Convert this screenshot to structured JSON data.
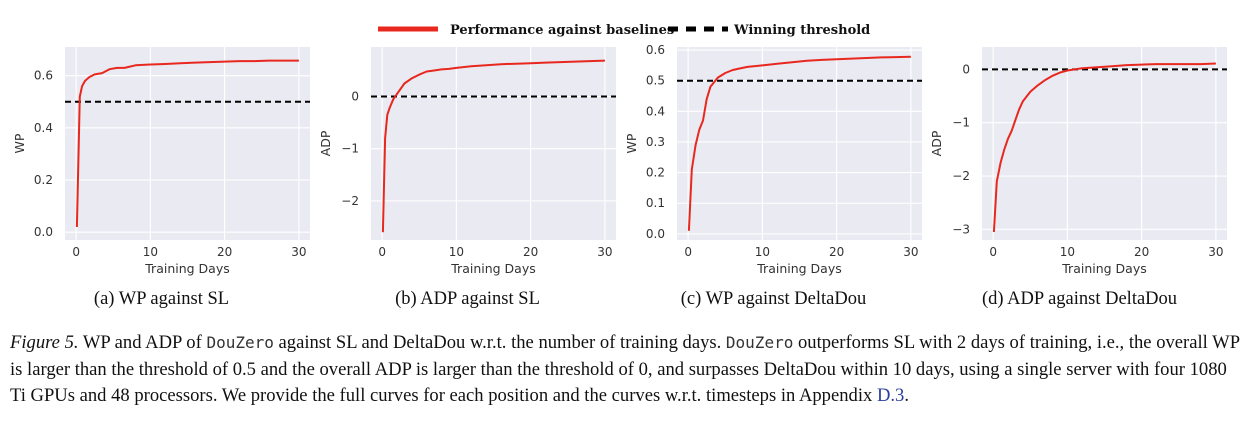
{
  "legend": {
    "performance_label": "Performance against baselines",
    "threshold_label": "Winning threshold",
    "performance_color": "#e8281e",
    "threshold_color": "#000000"
  },
  "colors": {
    "plot_background": "#eaeaf2",
    "grid": "#ffffff",
    "axis_text": "#333333"
  },
  "chart_data": [
    {
      "type": "line",
      "caption": "(a) WP against SL",
      "xlabel": "Training Days",
      "ylabel": "WP",
      "xlim": [
        -1.5,
        31.5
      ],
      "ylim": [
        -0.03,
        0.71
      ],
      "xticks": [
        0,
        10,
        20,
        30
      ],
      "yticks": [
        0.0,
        0.2,
        0.4,
        0.6
      ],
      "ytick_labels": [
        "0.0",
        "0.2",
        "0.4",
        "0.6"
      ],
      "threshold": 0.5,
      "series": [
        {
          "x": [
            0.1,
            0.5,
            0.8,
            1.2,
            1.8,
            2.5,
            3.5,
            4.5,
            5.5,
            6.5,
            8,
            10,
            12,
            14,
            16,
            18,
            20,
            22,
            24,
            26,
            28,
            30
          ],
          "y": [
            0.02,
            0.52,
            0.56,
            0.58,
            0.595,
            0.605,
            0.61,
            0.625,
            0.63,
            0.63,
            0.64,
            0.643,
            0.645,
            0.648,
            0.65,
            0.652,
            0.654,
            0.656,
            0.656,
            0.658,
            0.658,
            0.658
          ]
        }
      ]
    },
    {
      "type": "line",
      "caption": "(b) ADP against SL",
      "xlabel": "Training Days",
      "ylabel": "ADP",
      "xlim": [
        -1.5,
        31.5
      ],
      "ylim": [
        -2.75,
        0.95
      ],
      "xticks": [
        0,
        10,
        20,
        30
      ],
      "yticks": [
        -2,
        -1,
        0
      ],
      "ytick_labels": [
        "−2",
        "−1",
        "0"
      ],
      "threshold": 0,
      "series": [
        {
          "x": [
            0.1,
            0.4,
            0.7,
            1,
            1.5,
            2,
            3,
            4,
            5,
            6,
            7,
            8,
            9,
            10,
            12,
            14,
            16,
            18,
            20,
            22,
            24,
            26,
            28,
            30
          ],
          "y": [
            -2.6,
            -0.8,
            -0.35,
            -0.22,
            -0.05,
            0.05,
            0.25,
            0.35,
            0.42,
            0.48,
            0.5,
            0.52,
            0.53,
            0.55,
            0.58,
            0.6,
            0.62,
            0.63,
            0.64,
            0.65,
            0.66,
            0.67,
            0.68,
            0.69
          ]
        }
      ]
    },
    {
      "type": "line",
      "caption": "(c) WP against DeltaDou",
      "xlabel": "Training Days",
      "ylabel": "WP",
      "xlim": [
        -1.5,
        31.5
      ],
      "ylim": [
        -0.02,
        0.61
      ],
      "xticks": [
        0,
        10,
        20,
        30
      ],
      "yticks": [
        0.0,
        0.1,
        0.2,
        0.3,
        0.4,
        0.5,
        0.6
      ],
      "ytick_labels": [
        "0.0",
        "0.1",
        "0.2",
        "0.3",
        "0.4",
        "0.5",
        "0.6"
      ],
      "threshold": 0.5,
      "series": [
        {
          "x": [
            0.1,
            0.5,
            1,
            1.5,
            2,
            2.5,
            3,
            4,
            5,
            6,
            7,
            8,
            10,
            12,
            14,
            16,
            18,
            20,
            22,
            24,
            26,
            28,
            30
          ],
          "y": [
            0.01,
            0.21,
            0.29,
            0.34,
            0.37,
            0.44,
            0.48,
            0.51,
            0.525,
            0.535,
            0.54,
            0.545,
            0.55,
            0.555,
            0.56,
            0.565,
            0.568,
            0.57,
            0.572,
            0.574,
            0.576,
            0.577,
            0.578
          ]
        }
      ]
    },
    {
      "type": "line",
      "caption": "(d) ADP against DeltaDou",
      "xlabel": "Training Days",
      "ylabel": "ADP",
      "xlim": [
        -1.5,
        31.5
      ],
      "ylim": [
        -3.2,
        0.42
      ],
      "xticks": [
        0,
        10,
        20,
        30
      ],
      "yticks": [
        -3,
        -2,
        -1,
        0
      ],
      "ytick_labels": [
        "−3",
        "−2",
        "−1",
        "0"
      ],
      "threshold": 0,
      "series": [
        {
          "x": [
            0.1,
            0.5,
            1,
            1.5,
            2,
            2.5,
            3,
            3.5,
            4,
            5,
            6,
            7,
            8,
            9,
            10,
            12,
            14,
            16,
            18,
            20,
            22,
            24,
            26,
            28,
            30
          ],
          "y": [
            -3.05,
            -2.1,
            -1.75,
            -1.5,
            -1.3,
            -1.15,
            -0.95,
            -0.75,
            -0.6,
            -0.42,
            -0.3,
            -0.2,
            -0.12,
            -0.06,
            -0.02,
            0.02,
            0.04,
            0.06,
            0.08,
            0.09,
            0.1,
            0.1,
            0.1,
            0.1,
            0.11
          ]
        }
      ]
    }
  ],
  "caption": {
    "label": "Figure 5.",
    "text1": " WP and ADP of ",
    "code1": "DouZero",
    "text2": " against SL and DeltaDou w.r.t. the number of training days. ",
    "code2": "DouZero",
    "text3": " outperforms SL with 2 days of training, i.e., the overall WP is larger than the threshold of 0.5 and the overall ADP is larger than the threshold of 0, and surpasses DeltaDou within 10 days, using a single server with four 1080 Ti GPUs and 48 processors. We provide the full curves for each position and the curves w.r.t. timesteps in Appendix ",
    "link": "D.3",
    "text4": "."
  }
}
